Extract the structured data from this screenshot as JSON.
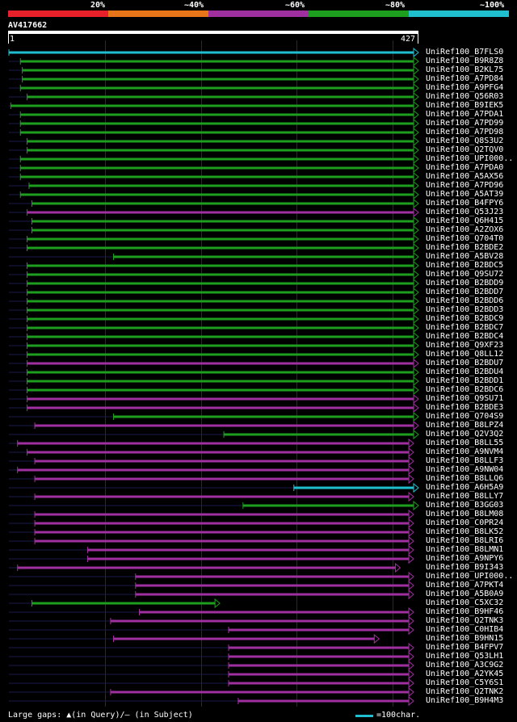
{
  "legend": {
    "labels": [
      "20%",
      "~40%",
      "~60%",
      "~80%",
      "~100%"
    ],
    "colors": [
      "#e8202a",
      "#e8751a",
      "#a030a0",
      "#1e9e1e",
      "#1fbfcf"
    ]
  },
  "query": {
    "id": "AV417662",
    "start": "1",
    "end": "427"
  },
  "footer": {
    "gaps_text": "Large gaps: ▲(in Query)/– (in Subject)",
    "scale_text": "=100char."
  },
  "chart_data": {
    "type": "alignment-overview",
    "query_length": 427,
    "hits": [
      {
        "name": "UniRef100_B7FLS0",
        "start": 1,
        "end": 427,
        "color": "#1fbfcf"
      },
      {
        "name": "UniRef100_B9R8Z8",
        "start": 13,
        "end": 427,
        "color": "#1e9e1e"
      },
      {
        "name": "UniRef100_B2KL75",
        "start": 15,
        "end": 427,
        "color": "#1e9e1e"
      },
      {
        "name": "UniRef100_A7PD84",
        "start": 15,
        "end": 427,
        "color": "#1e9e1e"
      },
      {
        "name": "UniRef100_A9PFG4",
        "start": 13,
        "end": 427,
        "color": "#1e9e1e"
      },
      {
        "name": "UniRef100_Q56R03",
        "start": 20,
        "end": 427,
        "color": "#1e9e1e"
      },
      {
        "name": "UniRef100_B9IEK5",
        "start": 3,
        "end": 427,
        "color": "#1e9e1e"
      },
      {
        "name": "UniRef100_A7PDA1",
        "start": 13,
        "end": 427,
        "color": "#1e9e1e"
      },
      {
        "name": "UniRef100_A7PD99",
        "start": 13,
        "end": 427,
        "color": "#1e9e1e"
      },
      {
        "name": "UniRef100_A7PD98",
        "start": 13,
        "end": 427,
        "color": "#1e9e1e"
      },
      {
        "name": "UniRef100_Q8S3U2",
        "start": 20,
        "end": 427,
        "color": "#1e9e1e"
      },
      {
        "name": "UniRef100_Q2TQV0",
        "start": 20,
        "end": 427,
        "color": "#1e9e1e"
      },
      {
        "name": "UniRef100_UPI000..",
        "start": 13,
        "end": 427,
        "color": "#1e9e1e"
      },
      {
        "name": "UniRef100_A7PDA0",
        "start": 13,
        "end": 427,
        "color": "#1e9e1e"
      },
      {
        "name": "UniRef100_A5AX56",
        "start": 13,
        "end": 427,
        "color": "#1e9e1e"
      },
      {
        "name": "UniRef100_A7PD96",
        "start": 22,
        "end": 427,
        "color": "#1e9e1e"
      },
      {
        "name": "UniRef100_A5AT39",
        "start": 13,
        "end": 427,
        "color": "#1e9e1e"
      },
      {
        "name": "UniRef100_B4FPY6",
        "start": 25,
        "end": 427,
        "color": "#1e9e1e"
      },
      {
        "name": "UniRef100_Q53J23",
        "start": 20,
        "end": 427,
        "color": "#a030a0"
      },
      {
        "name": "UniRef100_Q6H415",
        "start": 25,
        "end": 427,
        "color": "#1e9e1e"
      },
      {
        "name": "UniRef100_A2ZOX6",
        "start": 25,
        "end": 427,
        "color": "#1e9e1e"
      },
      {
        "name": "UniRef100_Q704T0",
        "start": 20,
        "end": 427,
        "color": "#1e9e1e"
      },
      {
        "name": "UniRef100_B2BDE2",
        "start": 20,
        "end": 427,
        "color": "#1e9e1e"
      },
      {
        "name": "UniRef100_A5BV28",
        "start": 110,
        "end": 427,
        "color": "#1e9e1e"
      },
      {
        "name": "UniRef100_B2BDC5",
        "start": 20,
        "end": 427,
        "color": "#1e9e1e"
      },
      {
        "name": "UniRef100_Q9SU72",
        "start": 20,
        "end": 427,
        "color": "#1e9e1e"
      },
      {
        "name": "UniRef100_B2BDD9",
        "start": 20,
        "end": 427,
        "color": "#1e9e1e"
      },
      {
        "name": "UniRef100_B2BDD7",
        "start": 20,
        "end": 427,
        "color": "#1e9e1e"
      },
      {
        "name": "UniRef100_B2BDD6",
        "start": 20,
        "end": 427,
        "color": "#1e9e1e"
      },
      {
        "name": "UniRef100_B2BDD3",
        "start": 20,
        "end": 427,
        "color": "#1e9e1e"
      },
      {
        "name": "UniRef100_B2BDC9",
        "start": 20,
        "end": 427,
        "color": "#1e9e1e"
      },
      {
        "name": "UniRef100_B2BDC7",
        "start": 20,
        "end": 427,
        "color": "#1e9e1e"
      },
      {
        "name": "UniRef100_B2BDC4",
        "start": 20,
        "end": 427,
        "color": "#1e9e1e"
      },
      {
        "name": "UniRef100_Q9XF23",
        "start": 20,
        "end": 427,
        "color": "#1e9e1e"
      },
      {
        "name": "UniRef100_Q8LL12",
        "start": 20,
        "end": 427,
        "color": "#1e9e1e"
      },
      {
        "name": "UniRef100_B2BDU7",
        "start": 20,
        "end": 427,
        "color": "#a030a0"
      },
      {
        "name": "UniRef100_B2BDU4",
        "start": 20,
        "end": 427,
        "color": "#1e9e1e"
      },
      {
        "name": "UniRef100_B2BDD1",
        "start": 20,
        "end": 427,
        "color": "#1e9e1e"
      },
      {
        "name": "UniRef100_B2BDC6",
        "start": 20,
        "end": 427,
        "color": "#1e9e1e"
      },
      {
        "name": "UniRef100_Q9SU71",
        "start": 20,
        "end": 427,
        "color": "#a030a0"
      },
      {
        "name": "UniRef100_B2BDE3",
        "start": 20,
        "end": 427,
        "color": "#a030a0"
      },
      {
        "name": "UniRef100_Q704S9",
        "start": 110,
        "end": 427,
        "color": "#1e9e1e"
      },
      {
        "name": "UniRef100_B8LPZ4",
        "start": 28,
        "end": 427,
        "color": "#a030a0"
      },
      {
        "name": "UniRef100_Q2V3Q2",
        "start": 225,
        "end": 427,
        "color": "#1e9e1e"
      },
      {
        "name": "UniRef100_B8LL55",
        "start": 10,
        "end": 422,
        "color": "#a030a0"
      },
      {
        "name": "UniRef100_A9NVM4",
        "start": 20,
        "end": 422,
        "color": "#a030a0"
      },
      {
        "name": "UniRef100_B8LLF3",
        "start": 28,
        "end": 422,
        "color": "#a030a0"
      },
      {
        "name": "UniRef100_A9NW04",
        "start": 10,
        "end": 422,
        "color": "#a030a0"
      },
      {
        "name": "UniRef100_B8LLQ6",
        "start": 28,
        "end": 422,
        "color": "#a030a0"
      },
      {
        "name": "UniRef100_A6H5A9",
        "start": 298,
        "end": 427,
        "color": "#1fbfcf"
      },
      {
        "name": "UniRef100_B8LLY7",
        "start": 28,
        "end": 422,
        "color": "#a030a0"
      },
      {
        "name": "UniRef100_B3GG03",
        "start": 245,
        "end": 427,
        "color": "#1e9e1e"
      },
      {
        "name": "UniRef100_B8LM08",
        "start": 28,
        "end": 422,
        "color": "#a030a0"
      },
      {
        "name": "UniRef100_C0PR24",
        "start": 28,
        "end": 422,
        "color": "#a030a0"
      },
      {
        "name": "UniRef100_B8LK52",
        "start": 28,
        "end": 422,
        "color": "#a030a0"
      },
      {
        "name": "UniRef100_B8LRI6",
        "start": 28,
        "end": 422,
        "color": "#a030a0"
      },
      {
        "name": "UniRef100_B8LMN1",
        "start": 83,
        "end": 422,
        "color": "#a030a0"
      },
      {
        "name": "UniRef100_A9NPY6",
        "start": 83,
        "end": 422,
        "color": "#a030a0"
      },
      {
        "name": "UniRef100_B9I343",
        "start": 10,
        "end": 408,
        "color": "#a030a0"
      },
      {
        "name": "UniRef100_UPI000..",
        "start": 133,
        "end": 422,
        "color": "#a030a0"
      },
      {
        "name": "UniRef100_A7PKT4",
        "start": 133,
        "end": 422,
        "color": "#a030a0"
      },
      {
        "name": "UniRef100_A5B0A9",
        "start": 133,
        "end": 422,
        "color": "#a030a0"
      },
      {
        "name": "UniRef100_C5XC32",
        "start": 25,
        "end": 220,
        "color": "#1e9e1e"
      },
      {
        "name": "UniRef100_B9HF46",
        "start": 137,
        "end": 422,
        "color": "#a030a0"
      },
      {
        "name": "UniRef100_Q2TNK3",
        "start": 107,
        "end": 422,
        "color": "#a030a0"
      },
      {
        "name": "UniRef100_C0HIB4",
        "start": 230,
        "end": 422,
        "color": "#a030a0"
      },
      {
        "name": "UniRef100_B9HN15",
        "start": 110,
        "end": 386,
        "color": "#a030a0"
      },
      {
        "name": "UniRef100_B4FPV7",
        "start": 230,
        "end": 422,
        "color": "#a030a0"
      },
      {
        "name": "UniRef100_Q53LH1",
        "start": 230,
        "end": 422,
        "color": "#a030a0"
      },
      {
        "name": "UniRef100_A3C9G2",
        "start": 230,
        "end": 422,
        "color": "#a030a0"
      },
      {
        "name": "UniRef100_A2YK45",
        "start": 230,
        "end": 422,
        "color": "#a030a0"
      },
      {
        "name": "UniRef100_C5Y6S1",
        "start": 230,
        "end": 422,
        "color": "#a030a0"
      },
      {
        "name": "UniRef100_Q2TNK2",
        "start": 107,
        "end": 422,
        "color": "#a030a0"
      },
      {
        "name": "UniRef100_B9H4M3",
        "start": 240,
        "end": 422,
        "color": "#a030a0"
      }
    ]
  }
}
